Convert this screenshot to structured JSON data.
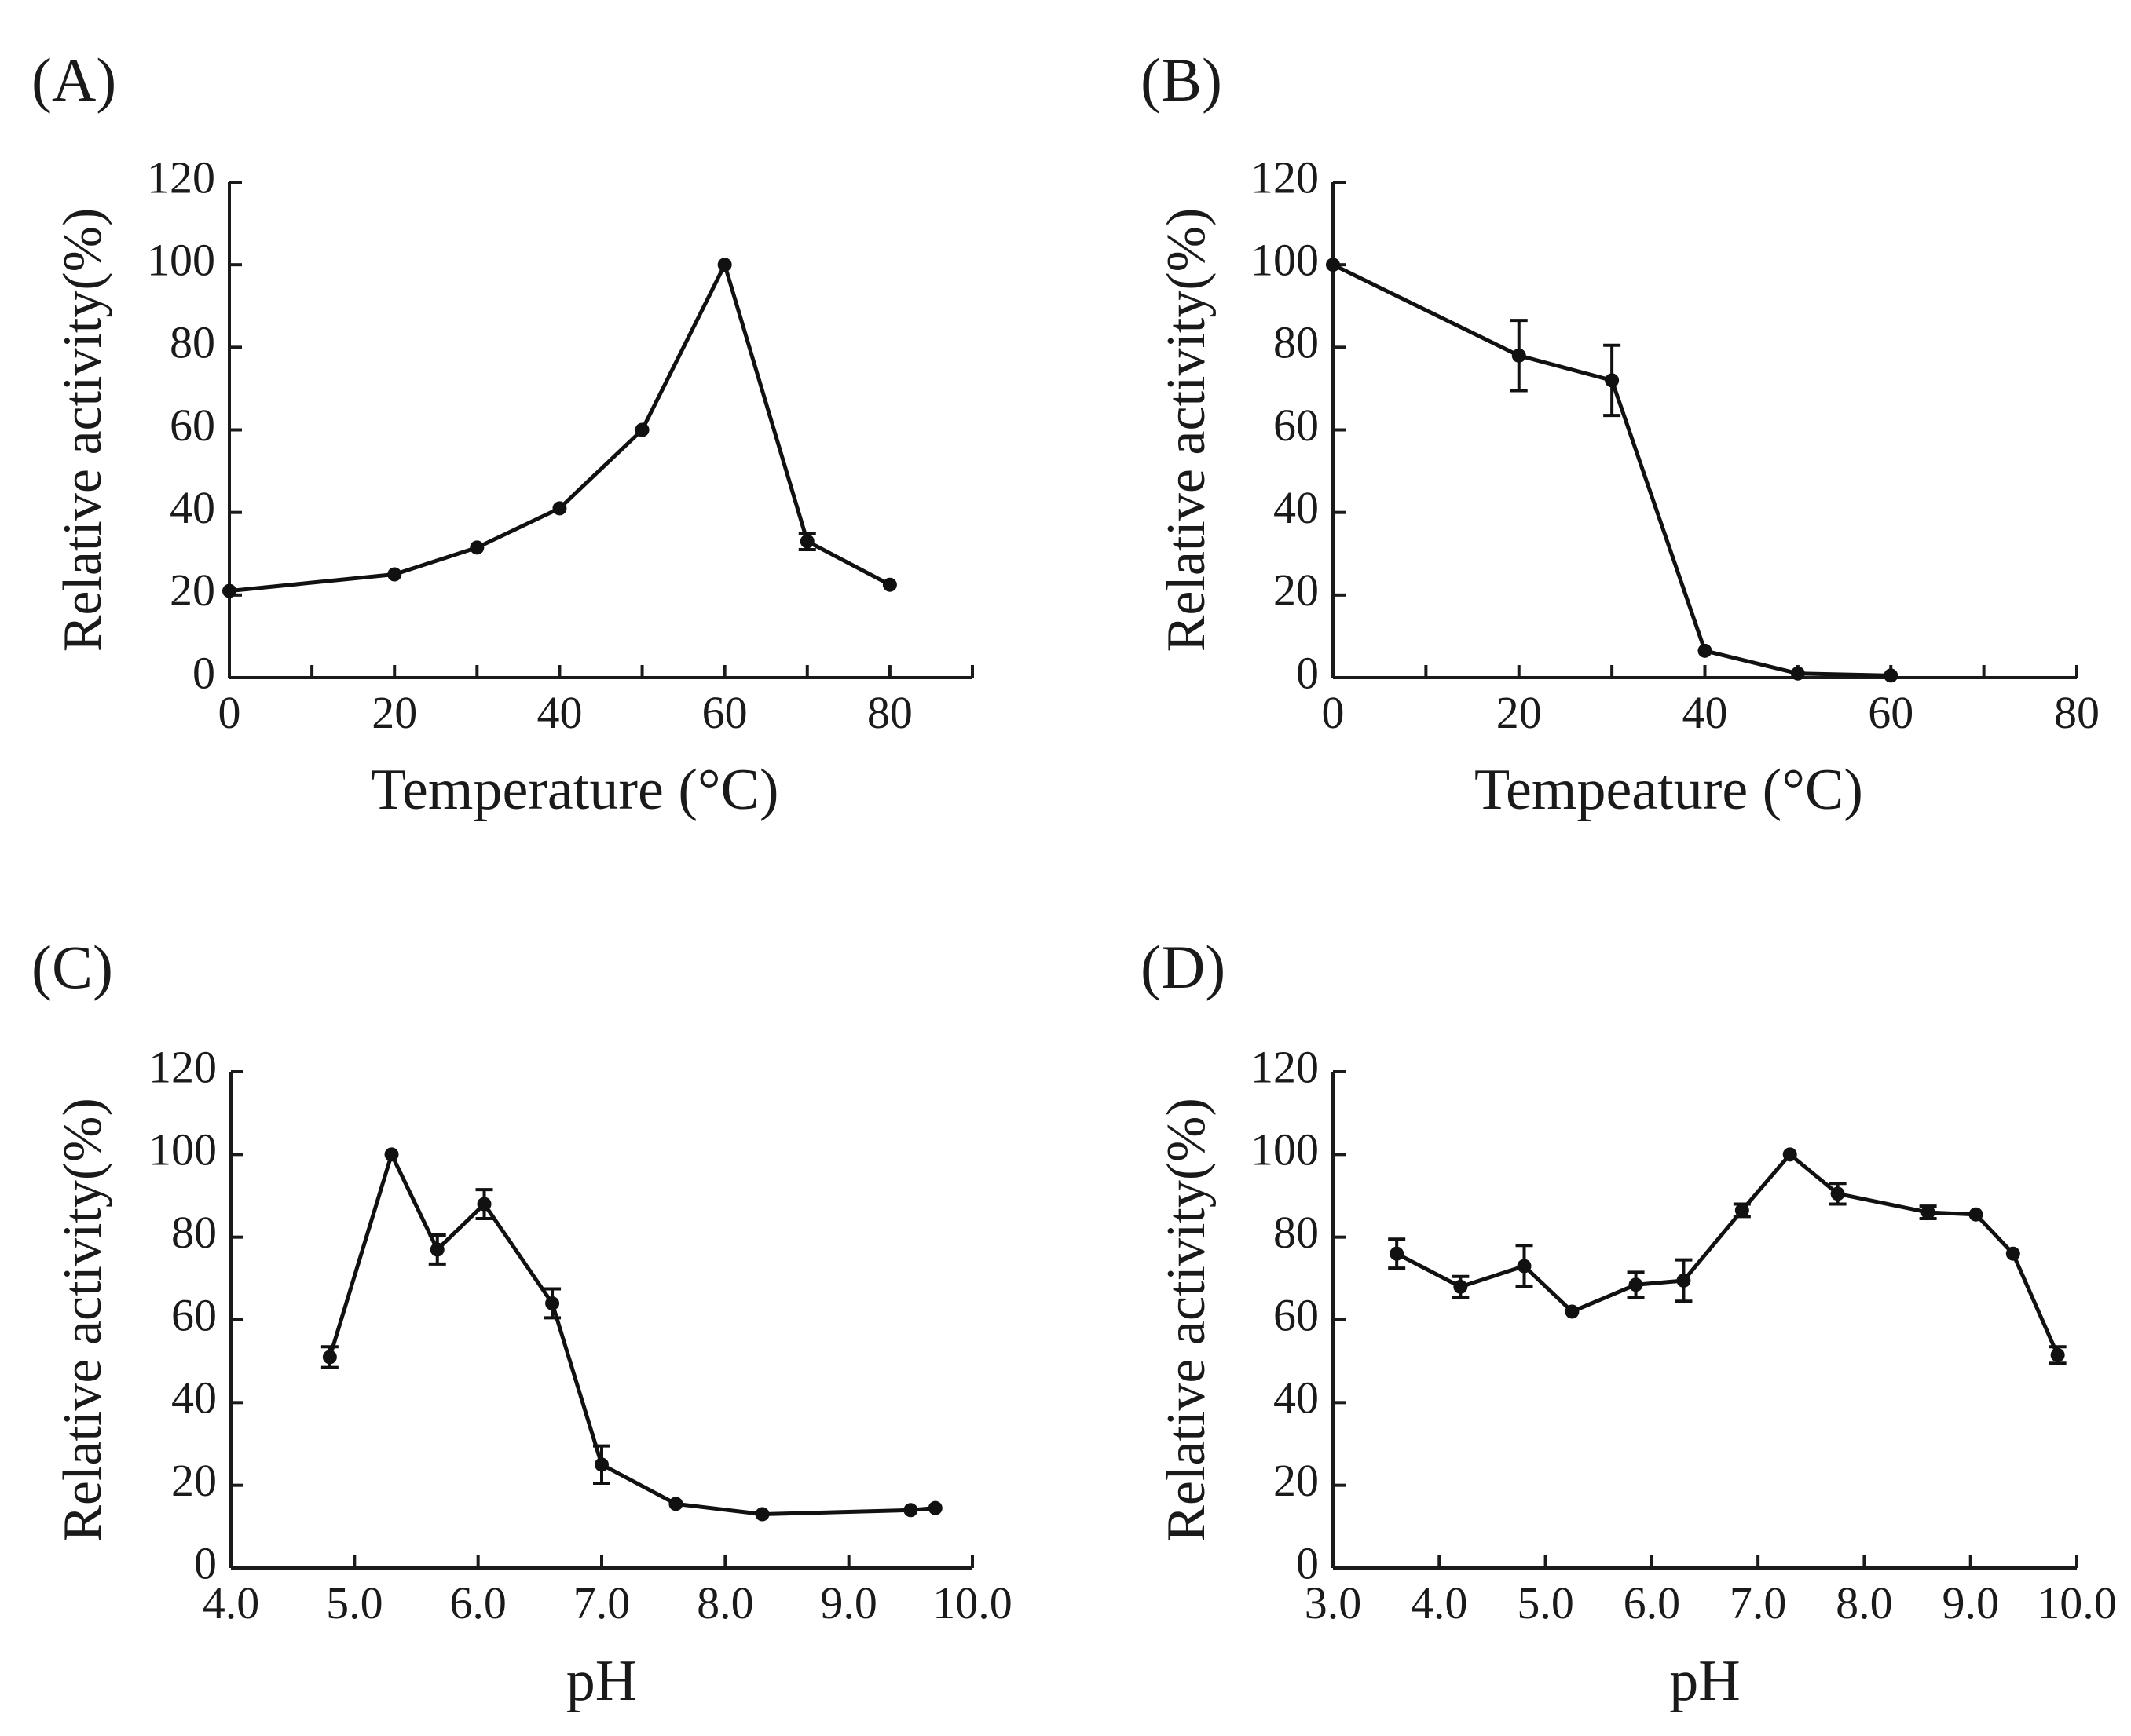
{
  "chart_data": [
    {
      "type": "line",
      "panel": "(A)",
      "xlabel": "Temperature (°C)",
      "ylabel": "Relative activity(%)",
      "xlim": [
        0,
        90
      ],
      "ylim": [
        0,
        120
      ],
      "xticks": [
        0,
        10,
        20,
        30,
        40,
        50,
        60,
        70,
        80,
        90
      ],
      "xticklabels": [
        "0",
        "",
        "20",
        "",
        "40",
        "",
        "60",
        "",
        "80",
        ""
      ],
      "yticks": [
        0,
        20,
        40,
        60,
        80,
        100,
        120
      ],
      "yticklabels": [
        "0",
        "20",
        "40",
        "60",
        "80",
        "100",
        "120"
      ],
      "series": [
        {
          "name": "relative activity",
          "x": [
            0,
            20,
            30,
            40,
            50,
            60,
            70,
            80
          ],
          "y": [
            21,
            25,
            31.5,
            41,
            60,
            100,
            33,
            22.5
          ],
          "err": [
            0,
            0,
            0,
            0,
            0,
            0,
            2,
            0
          ]
        }
      ]
    },
    {
      "type": "line",
      "panel": "(B)",
      "xlabel": "Tempeature (°C)",
      "ylabel": "Relative activity(%)",
      "xlim": [
        0,
        80
      ],
      "ylim": [
        0,
        120
      ],
      "xticks": [
        0,
        10,
        20,
        30,
        40,
        50,
        60,
        70,
        80
      ],
      "xticklabels": [
        "0",
        "",
        "20",
        "",
        "40",
        "",
        "60",
        "",
        "80"
      ],
      "yticks": [
        0,
        20,
        40,
        60,
        80,
        100,
        120
      ],
      "yticklabels": [
        "0",
        "20",
        "40",
        "60",
        "80",
        "100",
        "120"
      ],
      "series": [
        {
          "name": "relative activity",
          "x": [
            0,
            20,
            30,
            40,
            50,
            60
          ],
          "y": [
            100,
            78,
            72,
            6.5,
            1,
            0.5
          ],
          "err": [
            0,
            8.5,
            8.5,
            0,
            0,
            0
          ]
        }
      ]
    },
    {
      "type": "line",
      "panel": "(C)",
      "xlabel": "pH",
      "ylabel": "Relative activity(%)",
      "xlim": [
        4.0,
        10.0
      ],
      "ylim": [
        0,
        120
      ],
      "xticks": [
        4.0,
        5.0,
        6.0,
        7.0,
        8.0,
        9.0,
        10.0
      ],
      "xticklabels": [
        "4.0",
        "5.0",
        "6.0",
        "7.0",
        "8.0",
        "9.0",
        "10.0"
      ],
      "yticks": [
        0,
        20,
        40,
        60,
        80,
        100,
        120
      ],
      "yticklabels": [
        "0",
        "20",
        "40",
        "60",
        "80",
        "100",
        "120"
      ],
      "series": [
        {
          "name": "relative activity",
          "x": [
            4.8,
            5.3,
            5.67,
            6.05,
            6.6,
            7.0,
            7.6,
            8.3,
            9.5,
            9.7
          ],
          "y": [
            51,
            100,
            77,
            88,
            64,
            25,
            15.5,
            13,
            14,
            14.5
          ],
          "err": [
            2.5,
            0,
            3.5,
            3.5,
            3.5,
            4.5,
            0,
            0,
            0,
            0
          ]
        }
      ]
    },
    {
      "type": "line",
      "panel": "(D)",
      "xlabel": "pH",
      "ylabel": "Relative activity(%)",
      "xlim": [
        3.0,
        10.0
      ],
      "ylim": [
        0,
        120
      ],
      "xticks": [
        3.0,
        4.0,
        5.0,
        6.0,
        7.0,
        8.0,
        9.0,
        10.0
      ],
      "xticklabels": [
        "3.0",
        "4.0",
        "5.0",
        "6.0",
        "7.0",
        "8.0",
        "9.0",
        "10.0"
      ],
      "yticks": [
        0,
        20,
        40,
        60,
        80,
        100,
        120
      ],
      "yticklabels": [
        "0",
        "20",
        "40",
        "60",
        "80",
        "100",
        "120"
      ],
      "series": [
        {
          "name": "relative activity",
          "x": [
            3.6,
            4.2,
            4.8,
            5.25,
            5.85,
            6.3,
            6.85,
            7.3,
            7.75,
            8.6,
            9.05,
            9.4,
            9.82
          ],
          "y": [
            76,
            68,
            73,
            62,
            68.5,
            69.5,
            86.5,
            100,
            90.5,
            86,
            85.5,
            76,
            51.5
          ],
          "err": [
            3.5,
            2.5,
            5,
            0,
            3,
            5,
            1.5,
            0,
            2.5,
            1.5,
            0,
            0,
            2
          ]
        }
      ]
    }
  ]
}
